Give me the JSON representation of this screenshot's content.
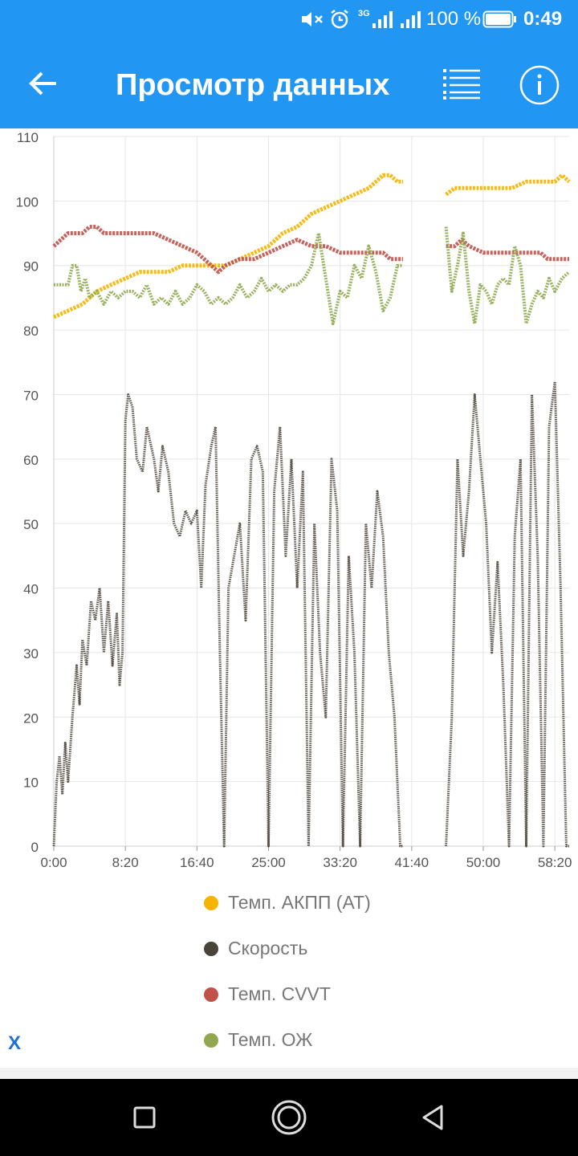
{
  "status_bar": {
    "mute_icon": "speaker-mute-icon",
    "alarm_icon": "alarm-clock-icon",
    "network": "3G",
    "battery_percent": "100 %",
    "time": "0:49"
  },
  "app_bar": {
    "back_icon": "arrow-left-icon",
    "title": "Просмотр данных",
    "list_icon": "list-icon",
    "info_icon": "info-icon"
  },
  "close_label": "X",
  "colors": {
    "primary": "#2196f3",
    "at_temp": "#f5b400",
    "speed": "#4a4338",
    "cvvt_temp": "#c0524a",
    "coolant_temp": "#8fa84f"
  },
  "nav_bar": {
    "back_icon": "nav-back-triangle-icon",
    "home_icon": "nav-home-circle-icon",
    "recent_icon": "nav-recent-square-icon"
  },
  "chart_data": {
    "type": "line",
    "title": "",
    "xlabel": "",
    "ylabel": "",
    "x_unit": "seconds",
    "xlim": [
      0,
      3600
    ],
    "ylim": [
      0,
      110
    ],
    "yticks": [
      0,
      10,
      20,
      30,
      40,
      50,
      60,
      70,
      80,
      90,
      100,
      110
    ],
    "ytick_labels": [
      "0",
      "10",
      "20",
      "30",
      "40",
      "50",
      "60",
      "70",
      "80",
      "90",
      "100",
      "110"
    ],
    "xticks": [
      0,
      500,
      1000,
      1500,
      2000,
      2500,
      3000,
      3500
    ],
    "xtick_labels": [
      "0:00",
      "8:20",
      "16:40",
      "25:00",
      "33:20",
      "41:40",
      "50:00",
      "58:20"
    ],
    "grid": true,
    "legend_position": "bottom",
    "gap": [
      2440,
      2740
    ],
    "series": [
      {
        "name": "Темп. АКПП (AT)",
        "color": "#f5b400",
        "points": [
          [
            0,
            82
          ],
          [
            100,
            83
          ],
          [
            200,
            84
          ],
          [
            300,
            86
          ],
          [
            400,
            87
          ],
          [
            500,
            88
          ],
          [
            600,
            89
          ],
          [
            700,
            89
          ],
          [
            800,
            89
          ],
          [
            900,
            90
          ],
          [
            1000,
            90
          ],
          [
            1100,
            90
          ],
          [
            1200,
            90
          ],
          [
            1300,
            91
          ],
          [
            1400,
            92
          ],
          [
            1500,
            93
          ],
          [
            1600,
            95
          ],
          [
            1700,
            96
          ],
          [
            1800,
            98
          ],
          [
            1900,
            99
          ],
          [
            2000,
            100
          ],
          [
            2100,
            101
          ],
          [
            2200,
            102
          ],
          [
            2250,
            103
          ],
          [
            2300,
            104
          ],
          [
            2350,
            104
          ],
          [
            2400,
            103
          ],
          [
            2440,
            103
          ],
          [
            2740,
            101
          ],
          [
            2800,
            102
          ],
          [
            2900,
            102
          ],
          [
            3000,
            102
          ],
          [
            3100,
            102
          ],
          [
            3200,
            102
          ],
          [
            3300,
            103
          ],
          [
            3400,
            103
          ],
          [
            3500,
            103
          ],
          [
            3550,
            104
          ],
          [
            3600,
            103
          ]
        ]
      },
      {
        "name": "Скорость",
        "color": "#4a4338",
        "points": [
          [
            0,
            0
          ],
          [
            20,
            10
          ],
          [
            40,
            14
          ],
          [
            60,
            8
          ],
          [
            80,
            16
          ],
          [
            100,
            10
          ],
          [
            130,
            20
          ],
          [
            160,
            28
          ],
          [
            180,
            22
          ],
          [
            200,
            32
          ],
          [
            230,
            28
          ],
          [
            260,
            38
          ],
          [
            290,
            35
          ],
          [
            320,
            40
          ],
          [
            350,
            30
          ],
          [
            380,
            38
          ],
          [
            410,
            28
          ],
          [
            440,
            36
          ],
          [
            460,
            25
          ],
          [
            480,
            30
          ],
          [
            500,
            66
          ],
          [
            520,
            70
          ],
          [
            550,
            68
          ],
          [
            580,
            60
          ],
          [
            620,
            58
          ],
          [
            650,
            65
          ],
          [
            700,
            60
          ],
          [
            730,
            55
          ],
          [
            760,
            62
          ],
          [
            800,
            58
          ],
          [
            840,
            50
          ],
          [
            880,
            48
          ],
          [
            920,
            52
          ],
          [
            960,
            50
          ],
          [
            1000,
            52
          ],
          [
            1030,
            40
          ],
          [
            1060,
            56
          ],
          [
            1100,
            62
          ],
          [
            1130,
            65
          ],
          [
            1160,
            30
          ],
          [
            1190,
            0
          ],
          [
            1220,
            40
          ],
          [
            1260,
            45
          ],
          [
            1300,
            50
          ],
          [
            1340,
            35
          ],
          [
            1380,
            60
          ],
          [
            1420,
            62
          ],
          [
            1460,
            58
          ],
          [
            1500,
            0
          ],
          [
            1540,
            55
          ],
          [
            1580,
            65
          ],
          [
            1620,
            45
          ],
          [
            1660,
            60
          ],
          [
            1700,
            40
          ],
          [
            1740,
            58
          ],
          [
            1780,
            0
          ],
          [
            1820,
            50
          ],
          [
            1860,
            30
          ],
          [
            1900,
            20
          ],
          [
            1940,
            60
          ],
          [
            1980,
            52
          ],
          [
            2020,
            0
          ],
          [
            2060,
            45
          ],
          [
            2100,
            30
          ],
          [
            2140,
            0
          ],
          [
            2180,
            50
          ],
          [
            2220,
            40
          ],
          [
            2260,
            55
          ],
          [
            2300,
            48
          ],
          [
            2340,
            30
          ],
          [
            2380,
            20
          ],
          [
            2420,
            0
          ],
          [
            2440,
            0
          ],
          [
            2740,
            0
          ],
          [
            2780,
            20
          ],
          [
            2820,
            60
          ],
          [
            2860,
            45
          ],
          [
            2900,
            55
          ],
          [
            2940,
            70
          ],
          [
            2980,
            60
          ],
          [
            3020,
            50
          ],
          [
            3060,
            30
          ],
          [
            3100,
            44
          ],
          [
            3140,
            25
          ],
          [
            3180,
            0
          ],
          [
            3220,
            48
          ],
          [
            3260,
            60
          ],
          [
            3300,
            0
          ],
          [
            3340,
            70
          ],
          [
            3380,
            45
          ],
          [
            3420,
            0
          ],
          [
            3460,
            65
          ],
          [
            3500,
            72
          ],
          [
            3540,
            40
          ],
          [
            3580,
            0
          ],
          [
            3600,
            0
          ]
        ]
      },
      {
        "name": "Темп. CVVT",
        "color": "#c0524a",
        "points": [
          [
            0,
            93
          ],
          [
            50,
            94
          ],
          [
            100,
            95
          ],
          [
            150,
            95
          ],
          [
            200,
            95
          ],
          [
            250,
            96
          ],
          [
            300,
            96
          ],
          [
            350,
            95
          ],
          [
            400,
            95
          ],
          [
            500,
            95
          ],
          [
            600,
            95
          ],
          [
            700,
            95
          ],
          [
            800,
            94
          ],
          [
            900,
            93
          ],
          [
            1000,
            92
          ],
          [
            1050,
            91
          ],
          [
            1100,
            90
          ],
          [
            1150,
            89
          ],
          [
            1200,
            90
          ],
          [
            1300,
            91
          ],
          [
            1400,
            91
          ],
          [
            1500,
            92
          ],
          [
            1600,
            93
          ],
          [
            1700,
            94
          ],
          [
            1800,
            93
          ],
          [
            1900,
            93
          ],
          [
            2000,
            92
          ],
          [
            2100,
            92
          ],
          [
            2200,
            92
          ],
          [
            2300,
            92
          ],
          [
            2350,
            91
          ],
          [
            2400,
            91
          ],
          [
            2440,
            91
          ],
          [
            2740,
            93
          ],
          [
            2800,
            93
          ],
          [
            2850,
            94
          ],
          [
            2900,
            93
          ],
          [
            3000,
            92
          ],
          [
            3100,
            92
          ],
          [
            3200,
            92
          ],
          [
            3300,
            92
          ],
          [
            3400,
            92
          ],
          [
            3450,
            91
          ],
          [
            3500,
            91
          ],
          [
            3600,
            91
          ]
        ]
      },
      {
        "name": "Темп. ОЖ",
        "color": "#8fa84f",
        "points": [
          [
            0,
            87
          ],
          [
            50,
            87
          ],
          [
            100,
            87
          ],
          [
            130,
            90
          ],
          [
            160,
            90
          ],
          [
            190,
            86
          ],
          [
            220,
            88
          ],
          [
            250,
            85
          ],
          [
            300,
            86
          ],
          [
            350,
            84
          ],
          [
            400,
            86
          ],
          [
            450,
            85
          ],
          [
            500,
            86
          ],
          [
            550,
            86
          ],
          [
            600,
            85
          ],
          [
            650,
            87
          ],
          [
            700,
            84
          ],
          [
            750,
            85
          ],
          [
            800,
            84
          ],
          [
            850,
            86
          ],
          [
            900,
            84
          ],
          [
            950,
            85
          ],
          [
            1000,
            87
          ],
          [
            1050,
            86
          ],
          [
            1100,
            84
          ],
          [
            1150,
            85
          ],
          [
            1200,
            84
          ],
          [
            1250,
            85
          ],
          [
            1300,
            87
          ],
          [
            1350,
            85
          ],
          [
            1400,
            86
          ],
          [
            1450,
            88
          ],
          [
            1500,
            86
          ],
          [
            1550,
            87
          ],
          [
            1600,
            86
          ],
          [
            1650,
            87
          ],
          [
            1700,
            87
          ],
          [
            1750,
            88
          ],
          [
            1800,
            90
          ],
          [
            1850,
            95
          ],
          [
            1900,
            88
          ],
          [
            1950,
            81
          ],
          [
            2000,
            86
          ],
          [
            2050,
            85
          ],
          [
            2100,
            90
          ],
          [
            2150,
            88
          ],
          [
            2200,
            93
          ],
          [
            2250,
            89
          ],
          [
            2300,
            83
          ],
          [
            2350,
            85
          ],
          [
            2400,
            90
          ],
          [
            2440,
            90
          ],
          [
            2740,
            96
          ],
          [
            2780,
            86
          ],
          [
            2820,
            90
          ],
          [
            2860,
            95
          ],
          [
            2900,
            86
          ],
          [
            2940,
            81
          ],
          [
            2980,
            87
          ],
          [
            3020,
            86
          ],
          [
            3060,
            84
          ],
          [
            3100,
            87
          ],
          [
            3140,
            88
          ],
          [
            3180,
            87
          ],
          [
            3220,
            93
          ],
          [
            3260,
            90
          ],
          [
            3300,
            81
          ],
          [
            3340,
            84
          ],
          [
            3380,
            86
          ],
          [
            3420,
            85
          ],
          [
            3460,
            88
          ],
          [
            3500,
            86
          ],
          [
            3550,
            88
          ],
          [
            3600,
            89
          ]
        ]
      }
    ]
  }
}
